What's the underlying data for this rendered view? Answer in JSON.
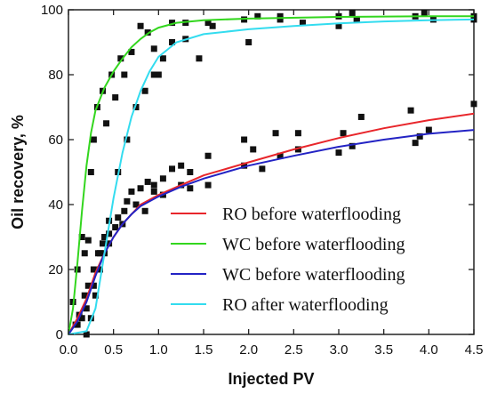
{
  "chart_data": {
    "type": "scatter",
    "title": "",
    "xlabel": "Injected PV",
    "ylabel": "Oil recovery, %",
    "xlim": [
      0,
      4.5
    ],
    "ylim": [
      0,
      100
    ],
    "x_ticks": [
      "0.0",
      "0.5",
      "1.0",
      "1.5",
      "2.0",
      "2.5",
      "3.0",
      "3.5",
      "4.0",
      "4.5"
    ],
    "y_ticks": [
      "0",
      "20",
      "40",
      "60",
      "80",
      "100"
    ],
    "grid": false,
    "legend_position": "center-right",
    "series": [
      {
        "name": "RO before waterflooding",
        "color": "#e8262b",
        "marker": "square",
        "points": [
          [
            0.08,
            3
          ],
          [
            0.12,
            6
          ],
          [
            0.18,
            12
          ],
          [
            0.22,
            15
          ],
          [
            0.28,
            20
          ],
          [
            0.33,
            25
          ],
          [
            0.38,
            28
          ],
          [
            0.45,
            31
          ],
          [
            0.55,
            36
          ],
          [
            0.62,
            38
          ],
          [
            0.7,
            44
          ],
          [
            0.8,
            45
          ],
          [
            0.88,
            47
          ],
          [
            0.95,
            46
          ],
          [
            1.05,
            48
          ],
          [
            1.15,
            51
          ],
          [
            1.25,
            52
          ],
          [
            1.35,
            50
          ],
          [
            1.55,
            55
          ],
          [
            1.95,
            60
          ],
          [
            2.3,
            62
          ],
          [
            2.55,
            62
          ],
          [
            3.05,
            62
          ],
          [
            3.25,
            67
          ],
          [
            3.8,
            69
          ],
          [
            4.5,
            71
          ]
        ],
        "fit": [
          [
            0,
            0
          ],
          [
            0.1,
            5
          ],
          [
            0.2,
            11
          ],
          [
            0.3,
            19
          ],
          [
            0.4,
            25
          ],
          [
            0.5,
            30
          ],
          [
            0.6,
            34
          ],
          [
            0.7,
            37
          ],
          [
            0.8,
            40
          ],
          [
            1.0,
            43
          ],
          [
            1.25,
            46
          ],
          [
            1.5,
            49
          ],
          [
            2.0,
            53
          ],
          [
            2.5,
            57
          ],
          [
            3.0,
            60.5
          ],
          [
            3.5,
            63.5
          ],
          [
            4.0,
            66
          ],
          [
            4.5,
            68
          ]
        ]
      },
      {
        "name": "WC before waterflooding",
        "color": "#33d61e",
        "marker": "square",
        "points": [
          [
            0.05,
            10
          ],
          [
            0.1,
            20
          ],
          [
            0.15,
            30
          ],
          [
            0.18,
            25
          ],
          [
            0.22,
            29
          ],
          [
            0.25,
            50
          ],
          [
            0.28,
            60
          ],
          [
            0.32,
            70
          ],
          [
            0.38,
            75
          ],
          [
            0.42,
            65
          ],
          [
            0.48,
            80
          ],
          [
            0.52,
            73
          ],
          [
            0.58,
            85
          ],
          [
            0.62,
            80
          ],
          [
            0.7,
            87
          ],
          [
            0.8,
            95
          ],
          [
            0.88,
            93
          ],
          [
            0.95,
            88
          ],
          [
            1.0,
            80
          ],
          [
            1.15,
            96
          ],
          [
            1.3,
            96
          ],
          [
            1.55,
            96
          ],
          [
            1.95,
            97
          ],
          [
            2.1,
            98
          ],
          [
            2.35,
            98
          ],
          [
            2.6,
            96
          ],
          [
            3.0,
            98
          ],
          [
            3.15,
            99
          ],
          [
            3.2,
            97
          ],
          [
            3.85,
            98
          ],
          [
            3.95,
            99
          ],
          [
            4.5,
            98
          ]
        ],
        "fit": [
          [
            0,
            0
          ],
          [
            0.05,
            8
          ],
          [
            0.1,
            22
          ],
          [
            0.15,
            38
          ],
          [
            0.2,
            52
          ],
          [
            0.25,
            62
          ],
          [
            0.3,
            69
          ],
          [
            0.4,
            76
          ],
          [
            0.5,
            81
          ],
          [
            0.6,
            85
          ],
          [
            0.7,
            88.5
          ],
          [
            0.8,
            91
          ],
          [
            0.9,
            93
          ],
          [
            1.0,
            94.5
          ],
          [
            1.2,
            96
          ],
          [
            1.5,
            96.8
          ],
          [
            2.0,
            97.3
          ],
          [
            3.0,
            97.8
          ],
          [
            4.0,
            98
          ],
          [
            4.5,
            98
          ]
        ]
      },
      {
        "name": "WC before waterflooding",
        "color": "#2323c4",
        "marker": "square",
        "points": [
          [
            0.1,
            3
          ],
          [
            0.15,
            5
          ],
          [
            0.2,
            8
          ],
          [
            0.28,
            15
          ],
          [
            0.35,
            25
          ],
          [
            0.4,
            30
          ],
          [
            0.45,
            28
          ],
          [
            0.52,
            33
          ],
          [
            0.6,
            34
          ],
          [
            0.65,
            41
          ],
          [
            0.75,
            40
          ],
          [
            0.85,
            38
          ],
          [
            0.95,
            44
          ],
          [
            1.05,
            43
          ],
          [
            1.25,
            46
          ],
          [
            1.35,
            45
          ],
          [
            1.55,
            46
          ],
          [
            1.95,
            52
          ],
          [
            2.05,
            57
          ],
          [
            2.15,
            51
          ],
          [
            2.35,
            55
          ],
          [
            2.55,
            57
          ],
          [
            3.0,
            56
          ],
          [
            3.15,
            58
          ],
          [
            3.85,
            59
          ],
          [
            3.9,
            61
          ],
          [
            4.0,
            63
          ]
        ],
        "fit": [
          [
            0,
            0
          ],
          [
            0.1,
            4
          ],
          [
            0.2,
            10
          ],
          [
            0.3,
            18
          ],
          [
            0.4,
            25
          ],
          [
            0.5,
            30
          ],
          [
            0.6,
            34
          ],
          [
            0.7,
            37
          ],
          [
            0.8,
            39.5
          ],
          [
            1.0,
            42.5
          ],
          [
            1.25,
            45.5
          ],
          [
            1.5,
            48
          ],
          [
            2.0,
            52
          ],
          [
            2.5,
            55
          ],
          [
            3.0,
            57.8
          ],
          [
            3.5,
            60
          ],
          [
            4.0,
            61.8
          ],
          [
            4.5,
            63
          ]
        ]
      },
      {
        "name": "RO after waterflooding",
        "color": "#33dcef",
        "marker": "square",
        "points": [
          [
            0.2,
            0
          ],
          [
            0.25,
            5
          ],
          [
            0.3,
            12
          ],
          [
            0.35,
            20
          ],
          [
            0.4,
            25
          ],
          [
            0.45,
            35
          ],
          [
            0.55,
            50
          ],
          [
            0.65,
            60
          ],
          [
            0.75,
            70
          ],
          [
            0.85,
            75
          ],
          [
            0.95,
            80
          ],
          [
            1.05,
            85
          ],
          [
            1.15,
            90
          ],
          [
            1.3,
            91
          ],
          [
            1.45,
            85
          ],
          [
            1.6,
            95
          ],
          [
            2.0,
            90
          ],
          [
            2.35,
            97
          ],
          [
            3.0,
            95
          ],
          [
            3.2,
            97
          ],
          [
            4.05,
            97
          ],
          [
            4.5,
            97
          ]
        ],
        "fit": [
          [
            0,
            0
          ],
          [
            0.2,
            1
          ],
          [
            0.3,
            8
          ],
          [
            0.4,
            25
          ],
          [
            0.5,
            42
          ],
          [
            0.6,
            56
          ],
          [
            0.7,
            67
          ],
          [
            0.8,
            75
          ],
          [
            0.9,
            81
          ],
          [
            1.0,
            85.5
          ],
          [
            1.2,
            90
          ],
          [
            1.5,
            92.5
          ],
          [
            2.0,
            94
          ],
          [
            2.5,
            95
          ],
          [
            3.0,
            95.8
          ],
          [
            3.5,
            96.4
          ],
          [
            4.0,
            96.8
          ],
          [
            4.5,
            97
          ]
        ]
      }
    ]
  }
}
